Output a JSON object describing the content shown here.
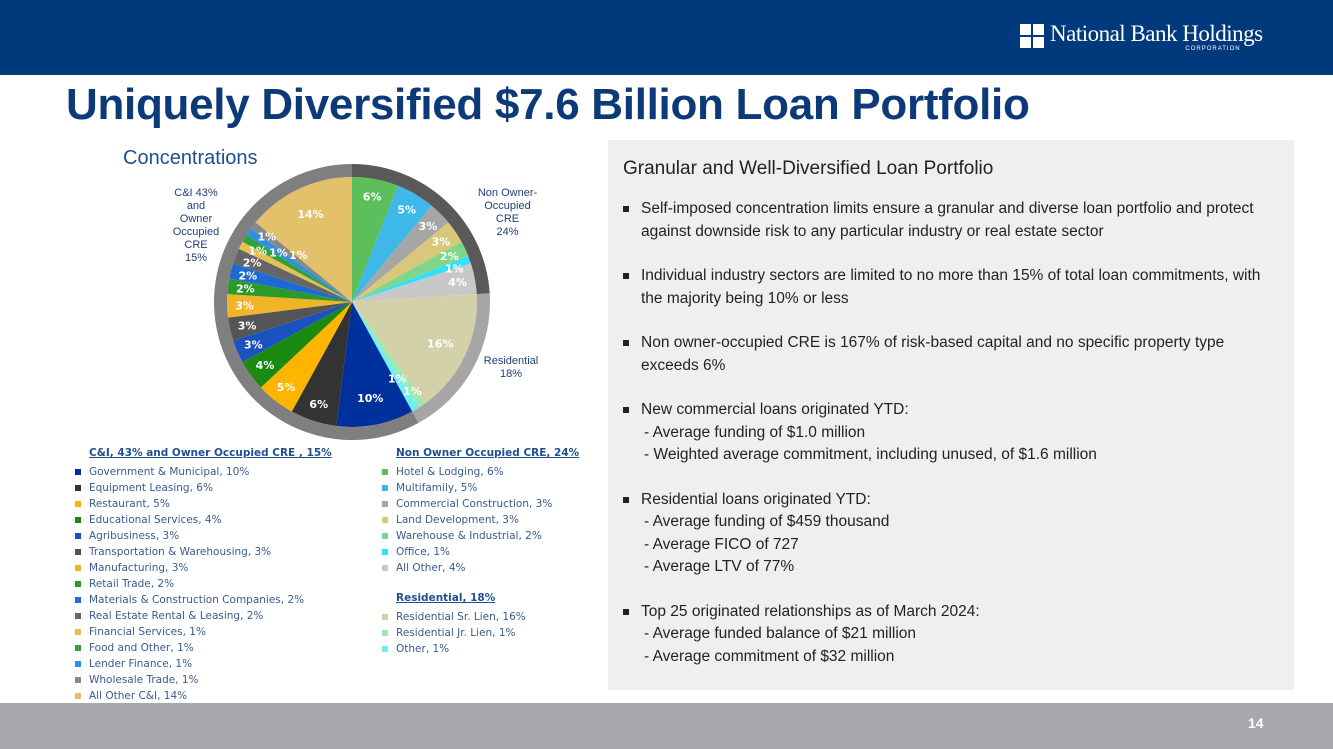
{
  "header": {
    "logo_name": "National Bank Holdings",
    "logo_sub": "CORPORATION"
  },
  "title": "Uniquely Diversified $7.6 Billion Loan Portfolio",
  "concentrations_label": "Concentrations",
  "chart_data": {
    "type": "pie",
    "title": "Concentrations",
    "unit": "%",
    "groups": [
      {
        "name": "Non Owner Occupied CRE, 24%",
        "ring_label": "Non Owner-\nOccupied\nCRE\n24%",
        "value": 24,
        "ring_color": "#595959"
      },
      {
        "name": "Residential, 18%",
        "ring_label": "Residential\n18%",
        "value": 18,
        "ring_color": "#a6a6a6"
      },
      {
        "name": "C&I, 43% and Owner Occupied CRE , 15%",
        "ring_label": "C&I 43%\nand\nOwner\nOccupied\nCRE\n15%",
        "value": 58,
        "ring_color": "#7f7f7f"
      }
    ],
    "slices": [
      {
        "label": "Hotel & Lodging",
        "value": 6,
        "group": 0,
        "color": "#5cbf5c"
      },
      {
        "label": "Multifamily",
        "value": 5,
        "group": 0,
        "color": "#3db8e8"
      },
      {
        "label": "Commercial Construction",
        "value": 3,
        "group": 0,
        "color": "#a6a6a6"
      },
      {
        "label": "Land Development",
        "value": 3,
        "group": 0,
        "color": "#d9c77a"
      },
      {
        "label": "Warehouse & Industrial",
        "value": 2,
        "group": 0,
        "color": "#7fd68a"
      },
      {
        "label": "Office",
        "value": 1,
        "group": 0,
        "color": "#33e0f5"
      },
      {
        "label": "All Other",
        "value": 4,
        "group": 0,
        "color": "#c8c8c8"
      },
      {
        "label": "Residential Sr. Lien",
        "value": 16,
        "group": 1,
        "color": "#d3d1a8"
      },
      {
        "label": "Residential Jr. Lien",
        "value": 1,
        "group": 1,
        "color": "#9fe8b0"
      },
      {
        "label": "Other",
        "value": 1,
        "group": 1,
        "color": "#6ff0f0"
      },
      {
        "label": "Government & Municipal",
        "value": 10,
        "group": 2,
        "color": "#00309c"
      },
      {
        "label": "Equipment Leasing",
        "value": 6,
        "group": 2,
        "color": "#333333"
      },
      {
        "label": "Restaurant",
        "value": 5,
        "group": 2,
        "color": "#ffb400"
      },
      {
        "label": "Educational Services",
        "value": 4,
        "group": 2,
        "color": "#1a8a10"
      },
      {
        "label": "Agribusiness",
        "value": 3,
        "group": 2,
        "color": "#1a52c0"
      },
      {
        "label": "Transportation & Warehousing",
        "value": 3,
        "group": 2,
        "color": "#555555"
      },
      {
        "label": "Manufacturing",
        "value": 3,
        "group": 2,
        "color": "#f0b428"
      },
      {
        "label": "Retail Trade",
        "value": 2,
        "group": 2,
        "color": "#2a9a2a"
      },
      {
        "label": "Materials & Construction Companies",
        "value": 2,
        "group": 2,
        "color": "#1e6ad0"
      },
      {
        "label": "Real Estate Rental & Leasing",
        "value": 2,
        "group": 2,
        "color": "#666666"
      },
      {
        "label": "Financial Services",
        "value": 1,
        "group": 2,
        "color": "#e8c050"
      },
      {
        "label": "Food and Other",
        "value": 1,
        "group": 2,
        "color": "#30a040"
      },
      {
        "label": "Lender Finance",
        "value": 1,
        "group": 2,
        "color": "#3090e0"
      },
      {
        "label": "Wholesale Trade",
        "value": 1,
        "group": 2,
        "color": "#888888"
      },
      {
        "label": "All Other C&I",
        "value": 14,
        "group": 2,
        "color": "#e3c06a"
      }
    ],
    "legend_left": {
      "group": 2,
      "order": [
        10,
        11,
        12,
        13,
        14,
        15,
        16,
        17,
        18,
        19,
        20,
        21,
        22,
        23,
        24
      ]
    },
    "legend_right": [
      {
        "group": 0,
        "order": [
          0,
          1,
          2,
          3,
          4,
          5,
          6
        ]
      },
      {
        "group": 1,
        "order": [
          7,
          8,
          9
        ]
      }
    ]
  },
  "panel": {
    "title": "Granular and Well-Diversified Loan Portfolio",
    "bullets": [
      {
        "text": "Self-imposed concentration limits ensure a granular and diverse loan portfolio and protect against downside risk to any particular industry or real estate sector",
        "subs": []
      },
      {
        "text": "Individual industry sectors are limited to no more than 15% of total loan commitments, with the majority being 10% or less",
        "subs": []
      },
      {
        "text": "Non owner-occupied CRE is 167% of risk-based capital and no specific property type exceeds 6%",
        "subs": []
      },
      {
        "text": "New commercial loans originated YTD:",
        "subs": [
          "- Average funding of $1.0 million",
          "-  Weighted average commitment, including unused, of $1.6 million"
        ]
      },
      {
        "text": "Residential loans originated YTD:",
        "subs": [
          "- Average funding of $459 thousand",
          "- Average FICO of 727",
          "- Average LTV of 77%"
        ]
      },
      {
        "text": "Top 25 originated relationships as of March 2024:",
        "subs": [
          "- Average funded balance of $21 million",
          "- Average commitment of $32 million"
        ]
      }
    ]
  },
  "footer": {
    "page": "14"
  }
}
